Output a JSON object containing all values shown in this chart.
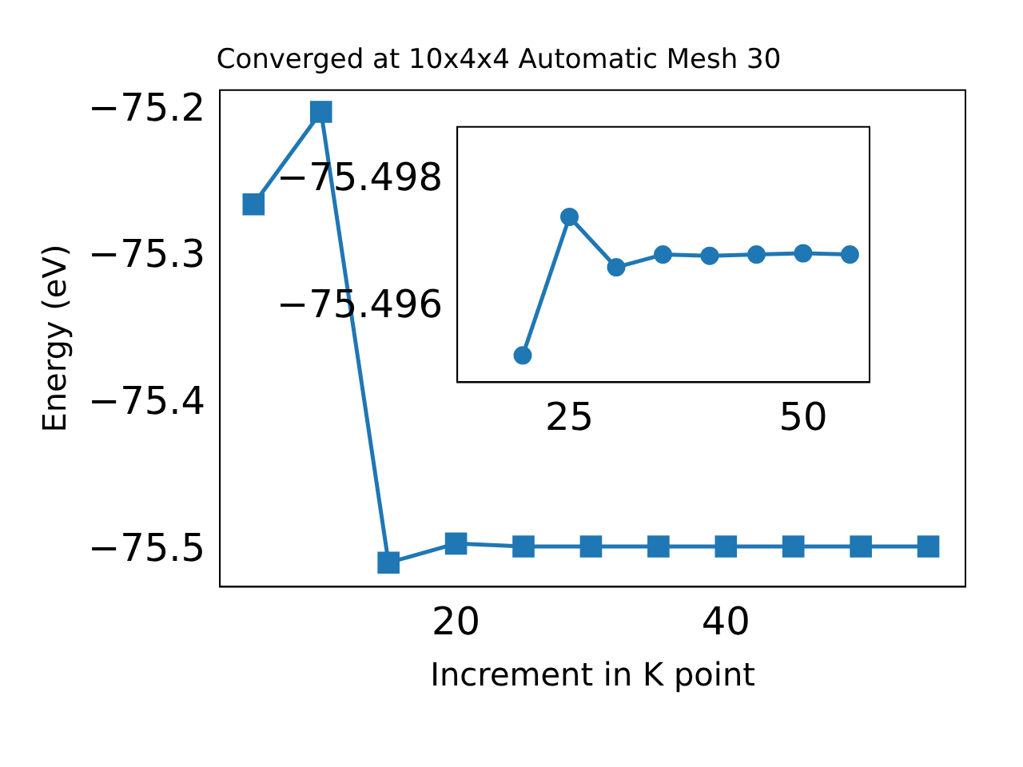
{
  "chart_data": [
    {
      "type": "line",
      "title": "Converged at 10x4x4 Automatic Mesh 30",
      "xlabel": "Increment in K point",
      "ylabel": "Energy (eV)",
      "series": [
        {
          "color": "#1f77b4",
          "x": [
            5,
            10,
            15,
            20,
            25,
            30,
            35,
            40,
            45,
            50,
            55
          ],
          "values": [
            -75.264,
            -75.201,
            -75.508,
            -75.495,
            -75.497,
            -75.497,
            -75.497,
            -75.497,
            -75.497,
            -75.497,
            -75.497
          ]
        }
      ],
      "xlim": [
        2.5,
        57.75
      ],
      "ylim": [
        -75.5244,
        -75.1862
      ],
      "xticks": [
        20,
        40
      ],
      "yticks": [
        {
          "value": -75.5,
          "label": "−75.5"
        },
        {
          "value": -75.4,
          "label": "−75.4"
        },
        {
          "value": -75.3,
          "label": "−75.3"
        },
        {
          "value": -75.2,
          "label": "−75.2"
        }
      ],
      "marker": "square",
      "line_style": "solid",
      "grid": false,
      "legend": false
    },
    {
      "type": "line",
      "series": [
        {
          "color": "#1f77b4",
          "x": [
            20,
            25,
            30,
            35,
            40,
            45,
            50,
            55
          ],
          "values": [
            -75.49525,
            -75.49742,
            -75.49663,
            -75.49683,
            -75.49681,
            -75.49683,
            -75.49685,
            -75.49683
          ]
        }
      ],
      "xlim": [
        13.0,
        57.1
      ],
      "ylim": [
        -75.49483,
        -75.49883
      ],
      "xticks": [
        25,
        50
      ],
      "yticks": [
        {
          "value": -75.498,
          "label": "−75.498"
        },
        {
          "value": -75.496,
          "label": "−75.496"
        }
      ],
      "marker": "circle",
      "line_style": "solid",
      "grid": false,
      "legend": false
    }
  ]
}
